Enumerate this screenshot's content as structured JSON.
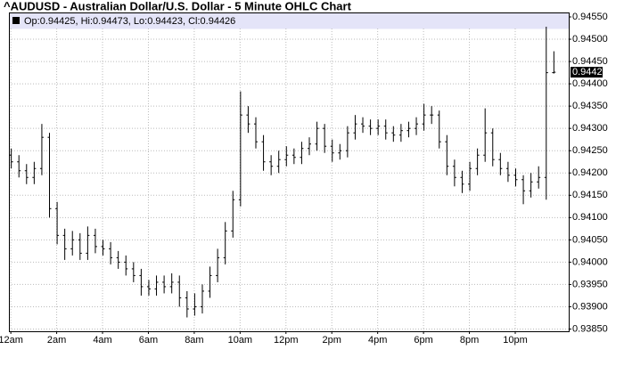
{
  "chart_data": {
    "type": "ohlc",
    "title": "^AUDUSD - Australian Dollar/U.S. Dollar - 5 Minute OHLC Chart",
    "info": "Op:0.94425, Hi:0.94473, Lo:0.94423, Cl:0.94426",
    "grid": true,
    "color": "#000000",
    "xlim": [
      -5,
      1460
    ],
    "ylim": [
      0.93845,
      0.9456
    ],
    "xticks": [
      {
        "value": 0,
        "label": "12am"
      },
      {
        "value": 120,
        "label": "2am"
      },
      {
        "value": 240,
        "label": "4am"
      },
      {
        "value": 360,
        "label": "6am"
      },
      {
        "value": 480,
        "label": "8am"
      },
      {
        "value": 600,
        "label": "10am"
      },
      {
        "value": 720,
        "label": "12pm"
      },
      {
        "value": 840,
        "label": "2pm"
      },
      {
        "value": 960,
        "label": "4pm"
      },
      {
        "value": 1080,
        "label": "6pm"
      },
      {
        "value": 1200,
        "label": "8pm"
      },
      {
        "value": 1320,
        "label": "10pm"
      }
    ],
    "yticks": [
      {
        "value": 0.9455,
        "label": "0.94550"
      },
      {
        "value": 0.945,
        "label": "0.94500"
      },
      {
        "value": 0.9445,
        "label": "0.94450"
      },
      {
        "value": 0.944,
        "label": "0.94400"
      },
      {
        "value": 0.9435,
        "label": "0.94350"
      },
      {
        "value": 0.943,
        "label": "0.94300"
      },
      {
        "value": 0.9425,
        "label": "0.94250"
      },
      {
        "value": 0.942,
        "label": "0.94200"
      },
      {
        "value": 0.9415,
        "label": "0.94150"
      },
      {
        "value": 0.941,
        "label": "0.94100"
      },
      {
        "value": 0.9405,
        "label": "0.94050"
      },
      {
        "value": 0.94,
        "label": "0.94000"
      },
      {
        "value": 0.9395,
        "label": "0.93950"
      },
      {
        "value": 0.939,
        "label": "0.93900"
      },
      {
        "value": 0.9385,
        "label": "0.93850"
      }
    ],
    "x": [
      0,
      20,
      40,
      60,
      80,
      100,
      120,
      140,
      160,
      180,
      200,
      220,
      240,
      260,
      280,
      300,
      320,
      340,
      360,
      380,
      400,
      420,
      440,
      460,
      480,
      500,
      520,
      540,
      560,
      580,
      600,
      620,
      640,
      660,
      680,
      700,
      720,
      740,
      760,
      780,
      800,
      820,
      840,
      860,
      880,
      900,
      920,
      940,
      960,
      980,
      1000,
      1020,
      1040,
      1060,
      1080,
      1100,
      1120,
      1140,
      1160,
      1180,
      1200,
      1220,
      1240,
      1260,
      1280,
      1300,
      1320,
      1340,
      1360,
      1380,
      1400,
      1420
    ],
    "open": [
      0.9424,
      0.94225,
      0.94205,
      0.9419,
      0.9421,
      0.9428,
      0.9412,
      0.9406,
      0.9403,
      0.9405,
      0.9402,
      0.9406,
      0.94035,
      0.9403,
      0.9401,
      0.94,
      0.93985,
      0.9397,
      0.93945,
      0.9394,
      0.93955,
      0.93945,
      0.93955,
      0.9392,
      0.93895,
      0.939,
      0.93935,
      0.9397,
      0.9401,
      0.9407,
      0.9414,
      0.9433,
      0.9431,
      0.9427,
      0.94225,
      0.94215,
      0.9423,
      0.9424,
      0.94235,
      0.94255,
      0.94265,
      0.943,
      0.9426,
      0.94245,
      0.9425,
      0.9429,
      0.9431,
      0.94305,
      0.943,
      0.94305,
      0.9429,
      0.94285,
      0.94295,
      0.943,
      0.9431,
      0.9433,
      0.9433,
      0.9427,
      0.94215,
      0.9419,
      0.94175,
      0.9421,
      0.9424,
      0.9429,
      0.9423,
      0.9421,
      0.94195,
      0.94185,
      0.9416,
      0.9418,
      0.9419,
      0.94425
    ],
    "high": [
      0.94255,
      0.9424,
      0.9422,
      0.94225,
      0.9431,
      0.9429,
      0.94135,
      0.94075,
      0.9407,
      0.94065,
      0.9408,
      0.94075,
      0.9405,
      0.94045,
      0.94025,
      0.94015,
      0.94,
      0.93985,
      0.9396,
      0.9397,
      0.9397,
      0.93975,
      0.9397,
      0.93935,
      0.9393,
      0.9395,
      0.9399,
      0.9403,
      0.9409,
      0.9416,
      0.94383,
      0.9435,
      0.94325,
      0.94285,
      0.9424,
      0.9425,
      0.9426,
      0.94255,
      0.9427,
      0.9428,
      0.94315,
      0.9431,
      0.94275,
      0.94265,
      0.94305,
      0.9433,
      0.94325,
      0.9432,
      0.9432,
      0.9432,
      0.94305,
      0.9431,
      0.94315,
      0.94325,
      0.94355,
      0.9435,
      0.9434,
      0.94285,
      0.9423,
      0.94205,
      0.94225,
      0.94255,
      0.94345,
      0.943,
      0.94245,
      0.94225,
      0.9421,
      0.94195,
      0.942,
      0.94215,
      0.94528,
      0.94473
    ],
    "low": [
      0.9421,
      0.9419,
      0.94175,
      0.94175,
      0.94195,
      0.941,
      0.9404,
      0.94005,
      0.94015,
      0.94005,
      0.94005,
      0.9402,
      0.94015,
      0.93995,
      0.93985,
      0.9397,
      0.93955,
      0.93925,
      0.93925,
      0.93925,
      0.9393,
      0.9393,
      0.939,
      0.93876,
      0.9388,
      0.93885,
      0.9392,
      0.93955,
      0.93995,
      0.94055,
      0.94125,
      0.9429,
      0.94255,
      0.94205,
      0.94195,
      0.942,
      0.94215,
      0.9422,
      0.9422,
      0.9424,
      0.9425,
      0.94245,
      0.94225,
      0.9423,
      0.94235,
      0.94275,
      0.9429,
      0.94285,
      0.94285,
      0.94275,
      0.9427,
      0.9427,
      0.9428,
      0.94285,
      0.94295,
      0.9431,
      0.94255,
      0.94195,
      0.9417,
      0.94155,
      0.9416,
      0.94195,
      0.94225,
      0.94215,
      0.94195,
      0.9418,
      0.9417,
      0.9413,
      0.94145,
      0.94165,
      0.9414,
      0.94423
    ],
    "close": [
      0.94225,
      0.94205,
      0.9419,
      0.9421,
      0.9428,
      0.9412,
      0.9406,
      0.9403,
      0.9405,
      0.9402,
      0.9406,
      0.94035,
      0.9403,
      0.9401,
      0.94,
      0.93985,
      0.9397,
      0.93945,
      0.9394,
      0.93955,
      0.93945,
      0.93955,
      0.9392,
      0.93895,
      0.939,
      0.93935,
      0.9397,
      0.9401,
      0.9407,
      0.9414,
      0.9433,
      0.9431,
      0.9427,
      0.94225,
      0.94215,
      0.9423,
      0.9424,
      0.94235,
      0.94255,
      0.94265,
      0.943,
      0.9426,
      0.94245,
      0.9425,
      0.9429,
      0.9431,
      0.94305,
      0.943,
      0.94305,
      0.9429,
      0.94285,
      0.94295,
      0.943,
      0.9431,
      0.9433,
      0.9433,
      0.9427,
      0.94215,
      0.9419,
      0.94175,
      0.9421,
      0.9424,
      0.9429,
      0.9423,
      0.9421,
      0.94195,
      0.94185,
      0.9416,
      0.9418,
      0.9419,
      0.94425,
      0.94426
    ]
  }
}
